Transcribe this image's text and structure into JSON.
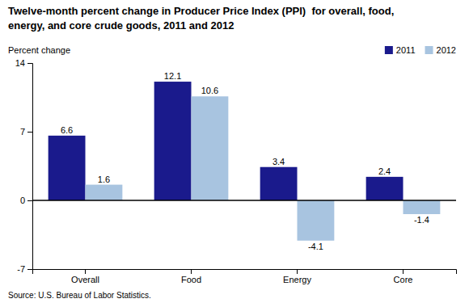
{
  "chart_data": {
    "type": "bar",
    "title": [
      "Twelve-month percent change in Producer Price Index (PPI)  for overall, food,",
      "energy, and core crude goods, 2011 and 2012"
    ],
    "y_label": "Percent change",
    "source": "Source: U.S. Bureau of Labor Statistics.",
    "categories": [
      "Overall",
      "Food",
      "Energy",
      "Core"
    ],
    "series": [
      {
        "name": "2011",
        "color": "#1a1a8c",
        "values": [
          6.6,
          12.1,
          3.4,
          2.4
        ]
      },
      {
        "name": "2012",
        "color": "#a8c4e0",
        "values": [
          1.6,
          10.6,
          -4.1,
          -1.4
        ]
      }
    ],
    "ylim": [
      -7,
      14
    ],
    "yticks": [
      -7,
      0,
      7,
      14
    ],
    "grid": false,
    "legend": "upper right",
    "data_labels": true
  }
}
